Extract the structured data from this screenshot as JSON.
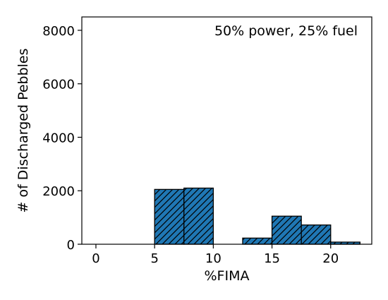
{
  "chart_data": {
    "type": "bar",
    "xlabel": "%FIMA",
    "ylabel": "# of Discharged Pebbles",
    "annotation": "50% power, 25% fuel",
    "xlim": [
      -1.2,
      23.5
    ],
    "ylim": [
      0,
      8500
    ],
    "xticks": [
      0,
      5,
      10,
      15,
      20
    ],
    "yticks": [
      0,
      2000,
      4000,
      6000,
      8000
    ],
    "bin_edges": [
      0,
      2.5,
      5,
      7.5,
      10,
      12.5,
      15,
      17.5,
      20,
      22.5
    ],
    "values": [
      0,
      0,
      2050,
      2100,
      0,
      230,
      1050,
      720,
      80
    ],
    "bar_color": "#1f77b4",
    "edge_color": "#000000",
    "hatch": "diagonal"
  }
}
